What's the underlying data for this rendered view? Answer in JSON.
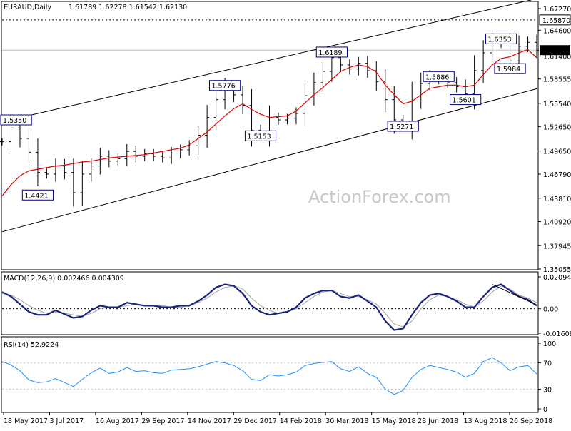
{
  "header": {
    "symbol": "EURAUD,Daily",
    "ohlc": "1.61789 1.62278 1.61542 1.62130"
  },
  "watermark": "ActionForex.com",
  "colors": {
    "background": "#ffffff",
    "axis": "#000000",
    "grid": "#c0c0c0",
    "ma_line": "#e00000",
    "macd_line": "#1a237e",
    "signal_line": "#a0a0a0",
    "channel": "#000000",
    "rsi_line": "#1e90ff",
    "label_border": "#000080"
  },
  "chart_data": [
    {
      "type": "line",
      "panel": "price",
      "x_axis_labels": [
        "18 May 2017",
        "3 Jul 2017",
        "16 Aug 2017",
        "29 Sep 2017",
        "14 Nov 2017",
        "29 Dec 2017",
        "14 Feb 2018",
        "30 Mar 2018",
        "15 May 2018",
        "28 Jun 2018",
        "13 Aug 2018",
        "26 Sep 2018"
      ],
      "y_tick_labels": [
        "1.67270",
        "1.64600",
        "1.61400",
        "1.58555",
        "1.55540",
        "1.52650",
        "1.49650",
        "1.46790",
        "1.43810",
        "1.40920",
        "1.37945",
        "1.35055"
      ],
      "ylim": [
        1.35055,
        1.6727
      ],
      "current_price_label": "1.62130",
      "current_price": 1.6213,
      "horizontal_line_label": "1.65870",
      "horizontal_line": 1.6587,
      "annotations": [
        {
          "text": "1.4421",
          "value": 1.4421,
          "date_index": 4
        },
        {
          "text": "1.5776",
          "value": 1.5776,
          "date_index": 25
        },
        {
          "text": "1.5153",
          "value": 1.5153,
          "date_index": 29
        },
        {
          "text": "1.6189",
          "value": 1.6189,
          "date_index": 37
        },
        {
          "text": "1.5271",
          "value": 1.5271,
          "date_index": 45
        },
        {
          "text": "1.5886",
          "value": 1.5886,
          "date_index": 49
        },
        {
          "text": "1.5601",
          "value": 1.5601,
          "date_index": 52
        },
        {
          "text": "1.6353",
          "value": 1.6353,
          "date_index": 56
        },
        {
          "text": "1.5984",
          "value": 1.5984,
          "date_index": 57
        },
        {
          "text": "1.5350",
          "value": 1.535,
          "date_index": 0
        }
      ],
      "series": [
        {
          "kind": "ohlc",
          "values": [
            1.508,
            1.525,
            1.512,
            1.495,
            1.47,
            1.468,
            1.478,
            1.47,
            1.445,
            1.468,
            1.478,
            1.49,
            1.484,
            1.487,
            1.496,
            1.49,
            1.493,
            1.49,
            1.488,
            1.494,
            1.498,
            1.503,
            1.516,
            1.538,
            1.56,
            1.575,
            1.566,
            1.553,
            1.522,
            1.517,
            1.538,
            1.535,
            1.537,
            1.543,
            1.565,
            1.581,
            1.595,
            1.612,
            1.603,
            1.598,
            1.605,
            1.596,
            1.582,
            1.56,
            1.535,
            1.531,
            1.562,
            1.58,
            1.588,
            1.585,
            1.581,
            1.576,
            1.567,
            1.596,
            1.618,
            1.633,
            1.63,
            1.608,
            1.626,
            1.631,
            1.621
          ]
        },
        {
          "kind": "moving-average",
          "values": [
            1.441,
            1.455,
            1.466,
            1.472,
            1.474,
            1.476,
            1.478,
            1.479,
            1.481,
            1.483,
            1.484,
            1.486,
            1.488,
            1.489,
            1.49,
            1.491,
            1.492,
            1.494,
            1.496,
            1.498,
            1.5,
            1.504,
            1.512,
            1.52,
            1.53,
            1.54,
            1.549,
            1.555,
            1.548,
            1.542,
            1.538,
            1.539,
            1.54,
            1.546,
            1.556,
            1.566,
            1.575,
            1.585,
            1.595,
            1.6,
            1.603,
            1.601,
            1.594,
            1.578,
            1.566,
            1.555,
            1.558,
            1.566,
            1.574,
            1.576,
            1.578,
            1.578,
            1.576,
            1.578,
            1.591,
            1.603,
            1.611,
            1.613,
            1.618,
            1.622,
            1.612
          ]
        }
      ],
      "channel": {
        "upper": [
          {
            "date_index": 0,
            "value": 1.5328
          },
          {
            "date_index": 60,
            "value": 1.685
          }
        ],
        "lower": [
          {
            "date_index": 0,
            "value": 1.3966
          },
          {
            "date_index": 60,
            "value": 1.5735
          }
        ]
      }
    },
    {
      "type": "line",
      "panel": "macd",
      "title": "MACD(12,26,9) 0.002466 0.004309",
      "y_tick_labels": [
        "0.02094",
        "0.00",
        "-0.016081"
      ],
      "ylim": [
        -0.016081,
        0.02094
      ],
      "series": [
        {
          "name": "MACD",
          "values": [
            0.011,
            0.008,
            0.003,
            -0.002,
            -0.004,
            -0.004,
            -0.001,
            -0.0035,
            -0.006,
            -0.005,
            -0.001,
            0.002,
            0.001,
            0.001,
            0.004,
            0.003,
            0.002,
            0.002,
            0.001,
            0.001,
            0.002,
            0.002,
            0.005,
            0.009,
            0.014,
            0.016,
            0.015,
            0.01,
            0.002,
            -0.002,
            -0.004,
            -0.003,
            -0.002,
            0.001,
            0.007,
            0.01,
            0.012,
            0.012,
            0.008,
            0.007,
            0.009,
            0.005,
            0.001,
            -0.008,
            -0.014,
            -0.013,
            -0.004,
            0.004,
            0.009,
            0.01,
            0.008,
            0.005,
            0.001,
            0.001,
            0.008,
            0.014,
            0.016,
            0.012,
            0.008,
            0.006,
            0.002
          ]
        },
        {
          "name": "Signal",
          "values": [
            0.01,
            0.009,
            0.006,
            0.002,
            -0.001,
            -0.003,
            -0.002,
            -0.003,
            -0.004,
            -0.005,
            -0.003,
            0,
            0.001,
            0.001,
            0.002,
            0.003,
            0.002,
            0.002,
            0.002,
            0.001,
            0.001,
            0.002,
            0.004,
            0.007,
            0.011,
            0.014,
            0.015,
            0.013,
            0.007,
            0.002,
            -0.001,
            -0.003,
            -0.002,
            0,
            0.004,
            0.008,
            0.011,
            0.012,
            0.01,
            0.008,
            0.008,
            0.006,
            0.003,
            -0.003,
            -0.01,
            -0.012,
            -0.008,
            0,
            0.006,
            0.009,
            0.008,
            0.006,
            0.003,
            0.001,
            0.005,
            0.011,
            0.015,
            0.013,
            0.009,
            0.007,
            0.004
          ]
        }
      ]
    },
    {
      "type": "line",
      "panel": "rsi",
      "title": "RSI(14) 52.9224",
      "y_tick_labels": [
        "100",
        "70",
        "30",
        "0"
      ],
      "ylim": [
        0,
        100
      ],
      "series": [
        {
          "name": "RSI",
          "values": [
            72,
            67,
            58,
            44,
            40,
            41,
            46,
            40,
            34,
            45,
            55,
            62,
            54,
            56,
            63,
            57,
            58,
            55,
            54,
            59,
            60,
            61,
            64,
            68,
            72,
            70,
            66,
            58,
            45,
            43,
            52,
            50,
            52,
            56,
            66,
            69,
            71,
            72,
            61,
            57,
            64,
            54,
            48,
            30,
            22,
            28,
            48,
            60,
            66,
            63,
            60,
            56,
            48,
            54,
            72,
            78,
            70,
            58,
            64,
            66,
            53
          ]
        }
      ],
      "reference_lines": [
        70,
        30
      ]
    }
  ]
}
